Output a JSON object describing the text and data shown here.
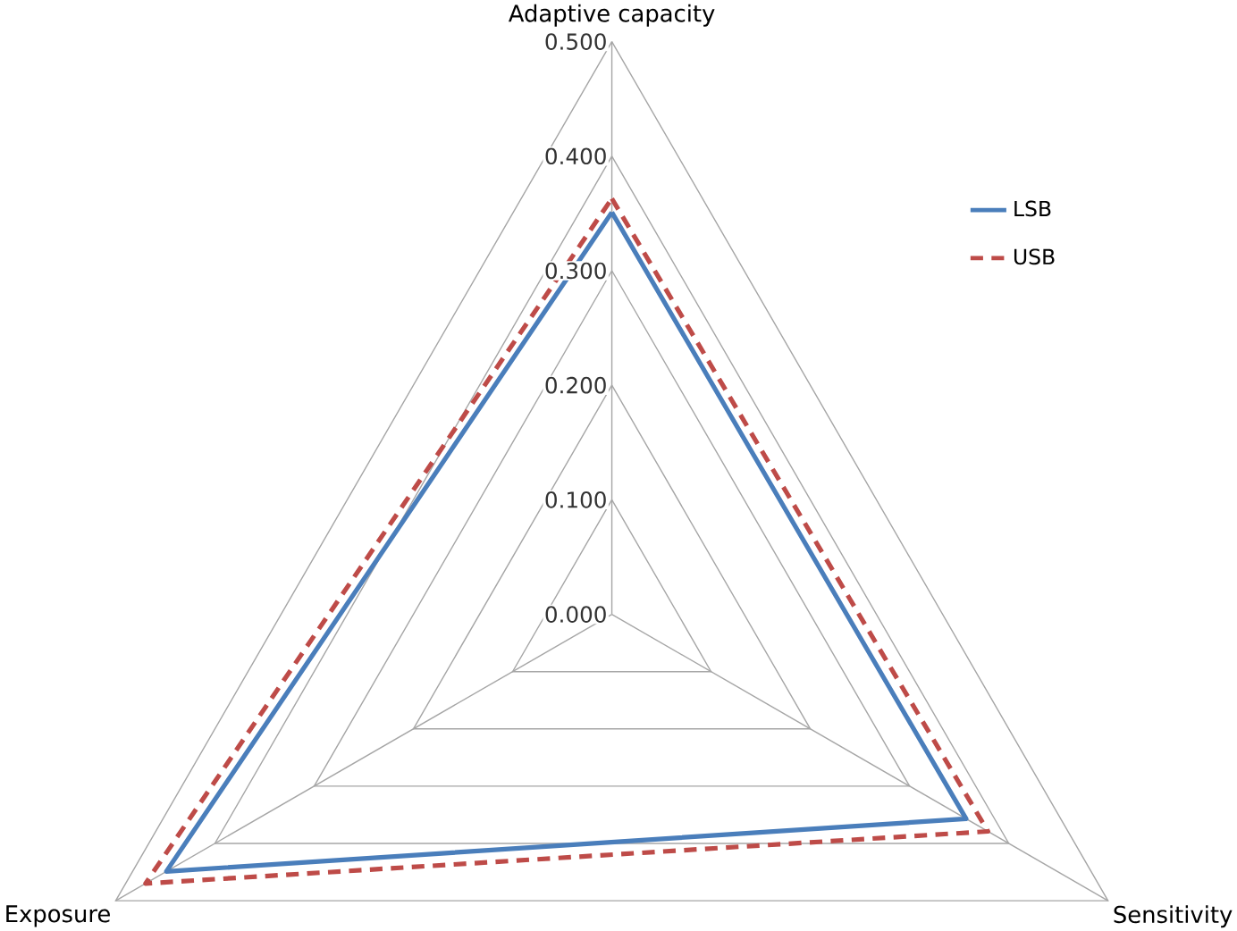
{
  "chart_data": {
    "type": "radar",
    "categories": [
      "Adaptive capacity",
      "Sensitivity",
      "Exposure"
    ],
    "ylim": [
      0,
      0.5
    ],
    "yticks": [
      {
        "value": 0,
        "label": "0.000"
      },
      {
        "value": 0.1,
        "label": "0.100"
      },
      {
        "value": 0.2,
        "label": "0.200"
      },
      {
        "value": 0.3,
        "label": "0.300"
      },
      {
        "value": 0.4,
        "label": "0.400"
      },
      {
        "value": 0.5,
        "label": "0.500"
      }
    ],
    "grid": true,
    "legend": "right",
    "series": [
      {
        "name": "LSB",
        "color": "#4a7ebb",
        "line_style": "solid",
        "values": [
          0.351,
          0.357,
          0.449
        ]
      },
      {
        "name": "USB",
        "color": "#be4b48",
        "line_style": "dashed",
        "values": [
          0.363,
          0.379,
          0.47
        ]
      }
    ]
  }
}
